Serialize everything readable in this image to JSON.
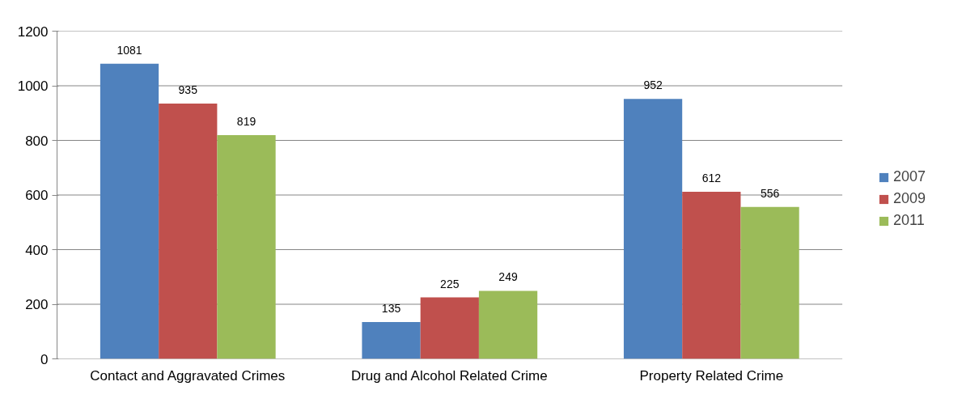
{
  "chart_data": {
    "type": "bar",
    "categories": [
      "Contact and Aggravated Crimes",
      "Drug and Alcohol Related Crime",
      "Property Related Crime"
    ],
    "series": [
      {
        "name": "2007",
        "color": "#4f81bd",
        "values": [
          1081,
          135,
          952
        ]
      },
      {
        "name": "2009",
        "color": "#c0504d",
        "values": [
          935,
          225,
          612
        ]
      },
      {
        "name": "2011",
        "color": "#9bbb59",
        "values": [
          819,
          249,
          556
        ]
      }
    ],
    "ylim": [
      0,
      1200
    ],
    "yticks": [
      0,
      200,
      400,
      600,
      800,
      1000,
      1200
    ],
    "grid": "y",
    "legend": "right",
    "data_labels": true
  }
}
